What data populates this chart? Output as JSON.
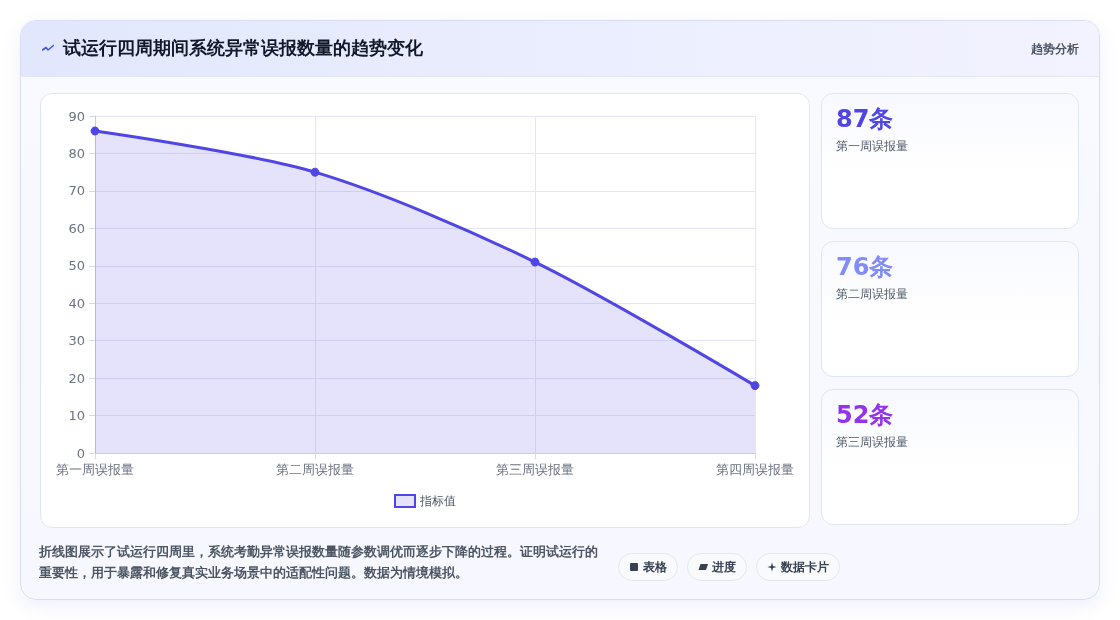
{
  "chart_data": [
    {
      "type": "area",
      "title": "试运行四周期间系统异常误报数量的趋势变化",
      "categories": [
        "第一周误报量",
        "第二周误报量",
        "第三周误报量",
        "第四周误报量"
      ],
      "series": [
        {
          "name": "指标值",
          "color": "#4f46e5",
          "values": [
            86,
            75,
            51,
            18
          ]
        }
      ],
      "ylim": [
        0,
        90
      ],
      "yticks": [
        0,
        10,
        20,
        30,
        40,
        50,
        60,
        70,
        80,
        90
      ],
      "grid": true,
      "legend": "bottom",
      "marker": "circle",
      "annotations": [
        "趋势分析",
        "折线图展示了试运行四周里，系统考勤异常误报数量随参数调优而逐步下降的过程。证明试运行的重要性，用于暴露和修复真实业务场景中的适配性问题。数据为情境模拟。",
        "表格",
        "进度",
        "数据卡片"
      ]
    },
    {
      "type": "other",
      "annotations": [
        "87条",
        "第一周误报量",
        "76条",
        "第二周误报量",
        "52条",
        "第三周误报量"
      ]
    }
  ]
}
